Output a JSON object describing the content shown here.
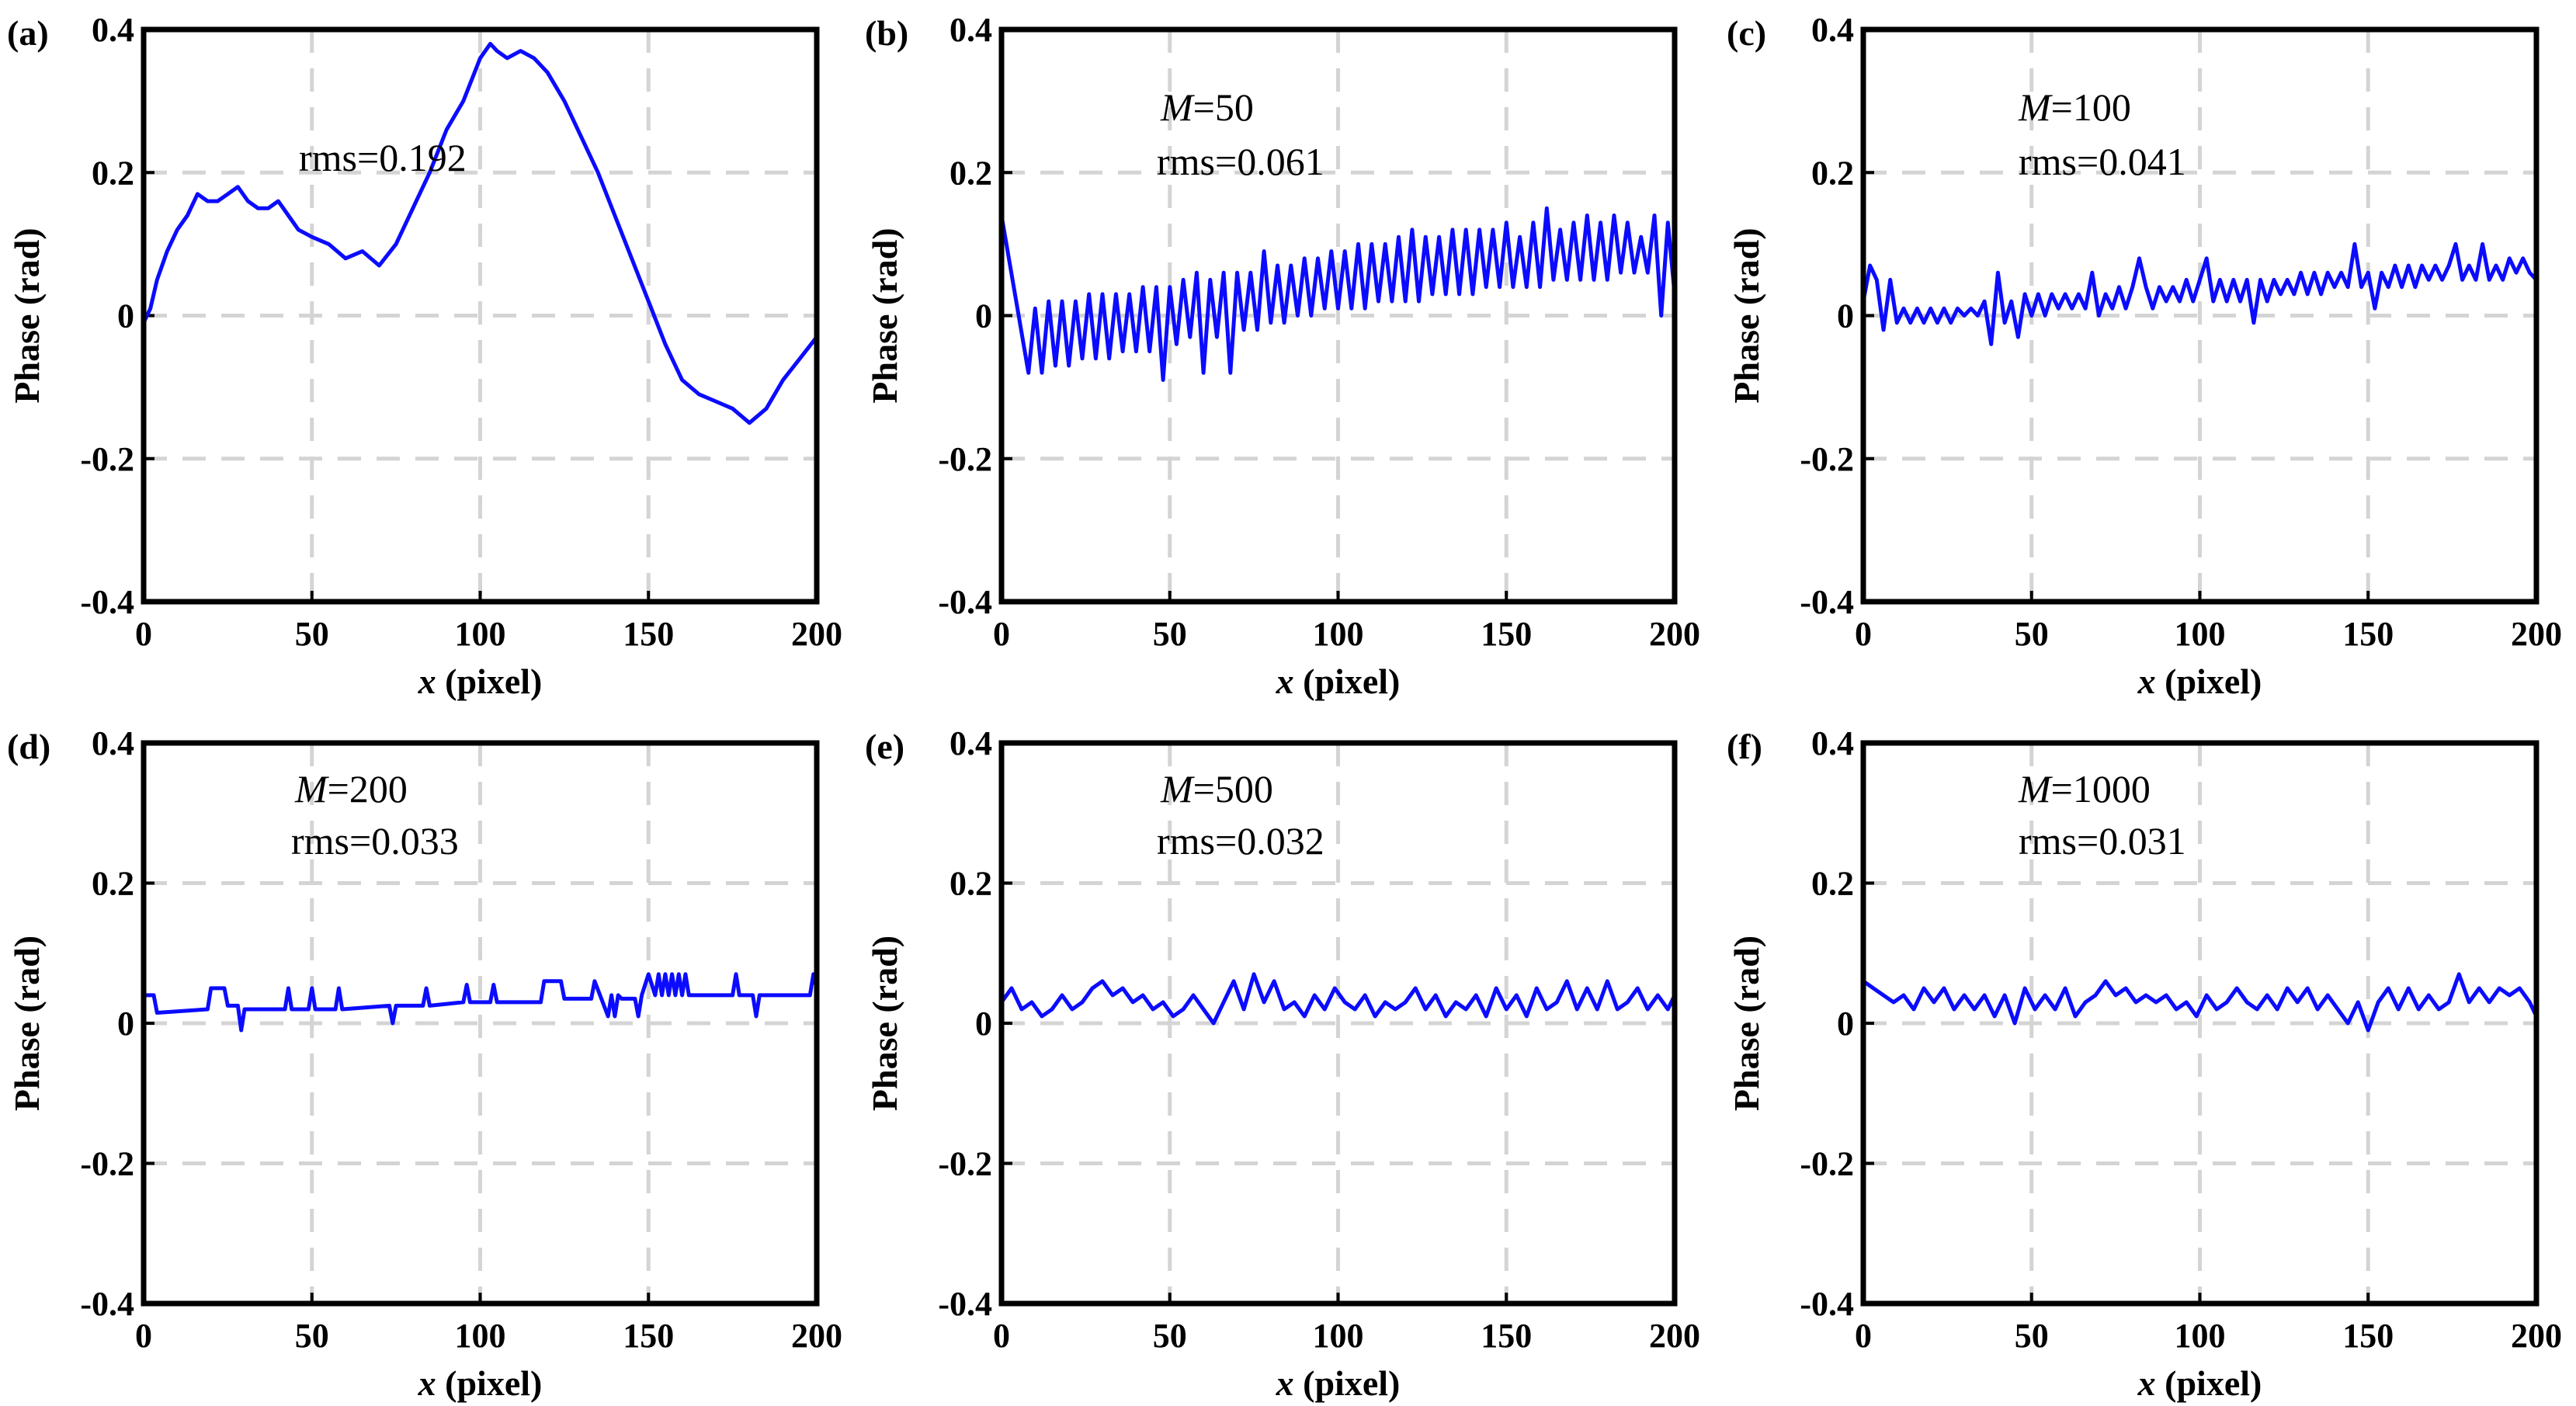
{
  "chart_data": [
    {
      "type": "line",
      "panel_label": "(a)",
      "xlabel": "x (pixel)",
      "ylabel": "Phase (rad)",
      "xlim": [
        0,
        200
      ],
      "ylim": [
        -0.4,
        0.4
      ],
      "xticks": [
        "0",
        "50",
        "100",
        "150",
        "200"
      ],
      "yticks": [
        "-0.4",
        "-0.2",
        "0",
        "0.2",
        "0.4"
      ],
      "grid": true,
      "annotation_m": "",
      "annotation_rms": "rms=0.192",
      "x": [
        0,
        2,
        4,
        7,
        10,
        13,
        16,
        19,
        22,
        25,
        28,
        31,
        34,
        37,
        40,
        43,
        46,
        50,
        55,
        60,
        65,
        70,
        75,
        80,
        85,
        90,
        95,
        100,
        103,
        105,
        108,
        112,
        116,
        120,
        125,
        130,
        135,
        140,
        145,
        150,
        155,
        160,
        165,
        170,
        175,
        180,
        185,
        190,
        195,
        200
      ],
      "y": [
        -0.01,
        0.01,
        0.05,
        0.09,
        0.12,
        0.14,
        0.17,
        0.16,
        0.16,
        0.17,
        0.18,
        0.16,
        0.15,
        0.15,
        0.16,
        0.14,
        0.12,
        0.11,
        0.1,
        0.08,
        0.09,
        0.07,
        0.1,
        0.15,
        0.2,
        0.26,
        0.3,
        0.36,
        0.38,
        0.37,
        0.36,
        0.37,
        0.36,
        0.34,
        0.3,
        0.25,
        0.2,
        0.14,
        0.08,
        0.02,
        -0.04,
        -0.09,
        -0.11,
        -0.12,
        -0.13,
        -0.15,
        -0.13,
        -0.09,
        -0.06,
        -0.03
      ]
    },
    {
      "type": "line",
      "panel_label": "(b)",
      "xlabel": "x (pixel)",
      "ylabel": "Phase (rad)",
      "xlim": [
        0,
        200
      ],
      "ylim": [
        -0.4,
        0.4
      ],
      "xticks": [
        "0",
        "50",
        "100",
        "150",
        "200"
      ],
      "yticks": [
        "-0.4",
        "-0.2",
        "0",
        "0.2",
        "0.4"
      ],
      "grid": true,
      "annotation_m": "M=50",
      "annotation_rms": "rms=0.061",
      "x": [
        0,
        8,
        10,
        12,
        14,
        16,
        18,
        20,
        22,
        24,
        26,
        28,
        30,
        32,
        34,
        36,
        38,
        40,
        42,
        44,
        46,
        48,
        50,
        52,
        54,
        56,
        58,
        60,
        62,
        64,
        66,
        68,
        70,
        72,
        74,
        76,
        78,
        80,
        82,
        84,
        86,
        88,
        90,
        92,
        94,
        96,
        98,
        100,
        102,
        104,
        106,
        108,
        110,
        112,
        114,
        116,
        118,
        120,
        122,
        124,
        126,
        128,
        130,
        132,
        134,
        136,
        138,
        140,
        142,
        144,
        146,
        148,
        150,
        152,
        154,
        156,
        158,
        160,
        162,
        164,
        166,
        168,
        170,
        172,
        174,
        176,
        178,
        180,
        182,
        184,
        186,
        188,
        190,
        192,
        194,
        196,
        198,
        200
      ],
      "y": [
        0.14,
        -0.08,
        0.01,
        -0.08,
        0.02,
        -0.07,
        0.02,
        -0.07,
        0.02,
        -0.06,
        0.03,
        -0.06,
        0.03,
        -0.06,
        0.03,
        -0.05,
        0.03,
        -0.05,
        0.04,
        -0.05,
        0.04,
        -0.09,
        0.04,
        -0.04,
        0.05,
        -0.03,
        0.06,
        -0.08,
        0.05,
        -0.03,
        0.06,
        -0.08,
        0.06,
        -0.02,
        0.06,
        -0.02,
        0.09,
        -0.01,
        0.07,
        -0.01,
        0.07,
        0,
        0.08,
        0,
        0.08,
        0.01,
        0.09,
        0.01,
        0.09,
        0.01,
        0.1,
        0.01,
        0.1,
        0.02,
        0.1,
        0.02,
        0.11,
        0.02,
        0.12,
        0.02,
        0.11,
        0.03,
        0.11,
        0.03,
        0.12,
        0.03,
        0.12,
        0.03,
        0.12,
        0.04,
        0.12,
        0.04,
        0.13,
        0.04,
        0.11,
        0.04,
        0.13,
        0.04,
        0.15,
        0.05,
        0.12,
        0.05,
        0.13,
        0.05,
        0.14,
        0.05,
        0.13,
        0.05,
        0.14,
        0.06,
        0.13,
        0.06,
        0.11,
        0.06,
        0.14,
        0,
        0.13,
        0.03
      ]
    },
    {
      "type": "line",
      "panel_label": "(c)",
      "xlabel": "x (pixel)",
      "ylabel": "Phase (rad)",
      "xlim": [
        0,
        200
      ],
      "ylim": [
        -0.4,
        0.4
      ],
      "xticks": [
        "0",
        "50",
        "100",
        "150",
        "200"
      ],
      "yticks": [
        "-0.4",
        "-0.2",
        "0",
        "0.2",
        "0.4"
      ],
      "grid": true,
      "annotation_m": "M=100",
      "annotation_rms": "rms=0.041",
      "x": [
        0,
        2,
        4,
        6,
        8,
        10,
        12,
        14,
        16,
        18,
        20,
        22,
        24,
        26,
        28,
        30,
        32,
        34,
        36,
        38,
        40,
        42,
        44,
        46,
        48,
        50,
        52,
        54,
        56,
        58,
        60,
        62,
        64,
        66,
        68,
        70,
        72,
        74,
        76,
        78,
        80,
        82,
        84,
        86,
        88,
        90,
        92,
        94,
        96,
        98,
        100,
        102,
        104,
        106,
        108,
        110,
        112,
        114,
        116,
        118,
        120,
        122,
        124,
        126,
        128,
        130,
        132,
        134,
        136,
        138,
        140,
        142,
        144,
        146,
        148,
        150,
        152,
        154,
        156,
        158,
        160,
        162,
        164,
        166,
        168,
        170,
        172,
        174,
        176,
        178,
        180,
        182,
        184,
        186,
        188,
        190,
        192,
        194,
        196,
        198,
        200
      ],
      "y": [
        0.02,
        0.07,
        0.05,
        -0.02,
        0.05,
        -0.01,
        0.01,
        -0.01,
        0.01,
        -0.01,
        0.01,
        -0.01,
        0.01,
        -0.01,
        0.01,
        0,
        0.01,
        0,
        0.02,
        -0.04,
        0.06,
        -0.01,
        0.02,
        -0.03,
        0.03,
        0,
        0.03,
        0,
        0.03,
        0.01,
        0.03,
        0.01,
        0.03,
        0.01,
        0.06,
        0,
        0.03,
        0.01,
        0.04,
        0.01,
        0.04,
        0.08,
        0.04,
        0.01,
        0.04,
        0.02,
        0.04,
        0.02,
        0.05,
        0.02,
        0.05,
        0.08,
        0.02,
        0.05,
        0.02,
        0.05,
        0.02,
        0.05,
        -0.01,
        0.05,
        0.02,
        0.05,
        0.03,
        0.05,
        0.03,
        0.06,
        0.03,
        0.06,
        0.03,
        0.06,
        0.04,
        0.06,
        0.04,
        0.1,
        0.04,
        0.06,
        0.01,
        0.06,
        0.04,
        0.07,
        0.04,
        0.07,
        0.04,
        0.07,
        0.05,
        0.07,
        0.05,
        0.07,
        0.1,
        0.05,
        0.07,
        0.05,
        0.1,
        0.05,
        0.07,
        0.05,
        0.08,
        0.06,
        0.08,
        0.06,
        0.05
      ]
    },
    {
      "type": "line",
      "panel_label": "(d)",
      "xlabel": "x (pixel)",
      "ylabel": "Phase (rad)",
      "xlim": [
        0,
        200
      ],
      "ylim": [
        -0.4,
        0.4
      ],
      "xticks": [
        "0",
        "50",
        "100",
        "150",
        "200"
      ],
      "yticks": [
        "-0.4",
        "-0.2",
        "0",
        "0.2",
        "0.4"
      ],
      "grid": true,
      "annotation_m": "M=200",
      "annotation_rms": "rms=0.033",
      "x": [
        0,
        3,
        4,
        19,
        20,
        24,
        25,
        28,
        29,
        30,
        31,
        32,
        42,
        43,
        44,
        49,
        50,
        51,
        57,
        58,
        59,
        73,
        74,
        75,
        83,
        84,
        85,
        95,
        96,
        97,
        103,
        104,
        105,
        118,
        119,
        124,
        125,
        133,
        134,
        136,
        138,
        139,
        140,
        141,
        142,
        146,
        147,
        148,
        150,
        152,
        153,
        154,
        155,
        156,
        157,
        158,
        159,
        160,
        161,
        162,
        175,
        176,
        177,
        178,
        181,
        182,
        183,
        184,
        198,
        199,
        200
      ],
      "y": [
        0.04,
        0.04,
        0.015,
        0.02,
        0.05,
        0.05,
        0.025,
        0.025,
        -0.01,
        0.02,
        0.02,
        0.02,
        0.02,
        0.05,
        0.02,
        0.02,
        0.05,
        0.02,
        0.02,
        0.05,
        0.02,
        0.025,
        0,
        0.025,
        0.025,
        0.05,
        0.025,
        0.03,
        0.055,
        0.03,
        0.03,
        0.055,
        0.03,
        0.03,
        0.06,
        0.06,
        0.035,
        0.035,
        0.06,
        0.035,
        0.01,
        0.04,
        0.01,
        0.04,
        0.035,
        0.035,
        0.01,
        0.04,
        0.07,
        0.04,
        0.07,
        0.04,
        0.07,
        0.04,
        0.07,
        0.04,
        0.07,
        0.04,
        0.07,
        0.04,
        0.04,
        0.07,
        0.04,
        0.04,
        0.04,
        0.01,
        0.04,
        0.04,
        0.04,
        0.07,
        0.05
      ]
    },
    {
      "type": "line",
      "panel_label": "(e)",
      "xlabel": "x (pixel)",
      "ylabel": "Phase (rad)",
      "xlim": [
        0,
        200
      ],
      "ylim": [
        -0.4,
        0.4
      ],
      "xticks": [
        "0",
        "50",
        "100",
        "150",
        "200"
      ],
      "yticks": [
        "-0.4",
        "-0.2",
        "0",
        "0.2",
        "0.4"
      ],
      "grid": true,
      "annotation_m": "M=500",
      "annotation_rms": "rms=0.032",
      "x": [
        0,
        3,
        6,
        9,
        12,
        15,
        18,
        21,
        24,
        27,
        30,
        33,
        36,
        39,
        42,
        45,
        48,
        51,
        54,
        57,
        60,
        63,
        66,
        69,
        72,
        75,
        78,
        81,
        84,
        87,
        90,
        93,
        96,
        99,
        102,
        105,
        108,
        111,
        114,
        117,
        120,
        123,
        126,
        129,
        132,
        135,
        138,
        141,
        144,
        147,
        150,
        153,
        156,
        159,
        162,
        165,
        168,
        171,
        174,
        177,
        180,
        183,
        186,
        189,
        192,
        195,
        198,
        200
      ],
      "y": [
        0.03,
        0.05,
        0.02,
        0.03,
        0.01,
        0.02,
        0.04,
        0.02,
        0.03,
        0.05,
        0.06,
        0.04,
        0.05,
        0.03,
        0.04,
        0.02,
        0.03,
        0.01,
        0.02,
        0.04,
        0.02,
        0,
        0.03,
        0.06,
        0.02,
        0.07,
        0.03,
        0.06,
        0.02,
        0.03,
        0.01,
        0.04,
        0.02,
        0.05,
        0.03,
        0.02,
        0.04,
        0.01,
        0.03,
        0.02,
        0.03,
        0.05,
        0.02,
        0.04,
        0.01,
        0.03,
        0.02,
        0.04,
        0.01,
        0.05,
        0.02,
        0.04,
        0.01,
        0.05,
        0.02,
        0.03,
        0.06,
        0.02,
        0.05,
        0.02,
        0.06,
        0.02,
        0.03,
        0.05,
        0.02,
        0.04,
        0.02,
        0.04
      ]
    },
    {
      "type": "line",
      "panel_label": "(f)",
      "xlabel": "x (pixel)",
      "ylabel": "Phase (rad)",
      "xlim": [
        0,
        200
      ],
      "ylim": [
        -0.4,
        0.4
      ],
      "xticks": [
        "0",
        "50",
        "100",
        "150",
        "200"
      ],
      "yticks": [
        "-0.4",
        "-0.2",
        "0",
        "0.2",
        "0.4"
      ],
      "grid": true,
      "annotation_m": "M=1000",
      "annotation_rms": "rms=0.031",
      "x": [
        0,
        3,
        6,
        9,
        12,
        15,
        18,
        21,
        24,
        27,
        30,
        33,
        36,
        39,
        42,
        45,
        48,
        51,
        54,
        57,
        60,
        63,
        66,
        69,
        72,
        75,
        78,
        81,
        84,
        87,
        90,
        93,
        96,
        99,
        102,
        105,
        108,
        111,
        114,
        117,
        120,
        123,
        126,
        129,
        132,
        135,
        138,
        141,
        144,
        147,
        150,
        153,
        156,
        159,
        162,
        165,
        168,
        171,
        174,
        177,
        180,
        183,
        186,
        189,
        192,
        195,
        198,
        200
      ],
      "y": [
        0.06,
        0.05,
        0.04,
        0.03,
        0.04,
        0.02,
        0.05,
        0.03,
        0.05,
        0.02,
        0.04,
        0.02,
        0.04,
        0.01,
        0.04,
        0,
        0.05,
        0.02,
        0.04,
        0.02,
        0.05,
        0.01,
        0.03,
        0.04,
        0.06,
        0.04,
        0.05,
        0.03,
        0.04,
        0.03,
        0.04,
        0.02,
        0.03,
        0.01,
        0.04,
        0.02,
        0.03,
        0.05,
        0.03,
        0.02,
        0.04,
        0.02,
        0.05,
        0.03,
        0.05,
        0.02,
        0.04,
        0.02,
        0,
        0.03,
        -0.01,
        0.03,
        0.05,
        0.02,
        0.05,
        0.02,
        0.04,
        0.02,
        0.03,
        0.07,
        0.03,
        0.05,
        0.03,
        0.05,
        0.04,
        0.05,
        0.03,
        0.01
      ]
    }
  ]
}
